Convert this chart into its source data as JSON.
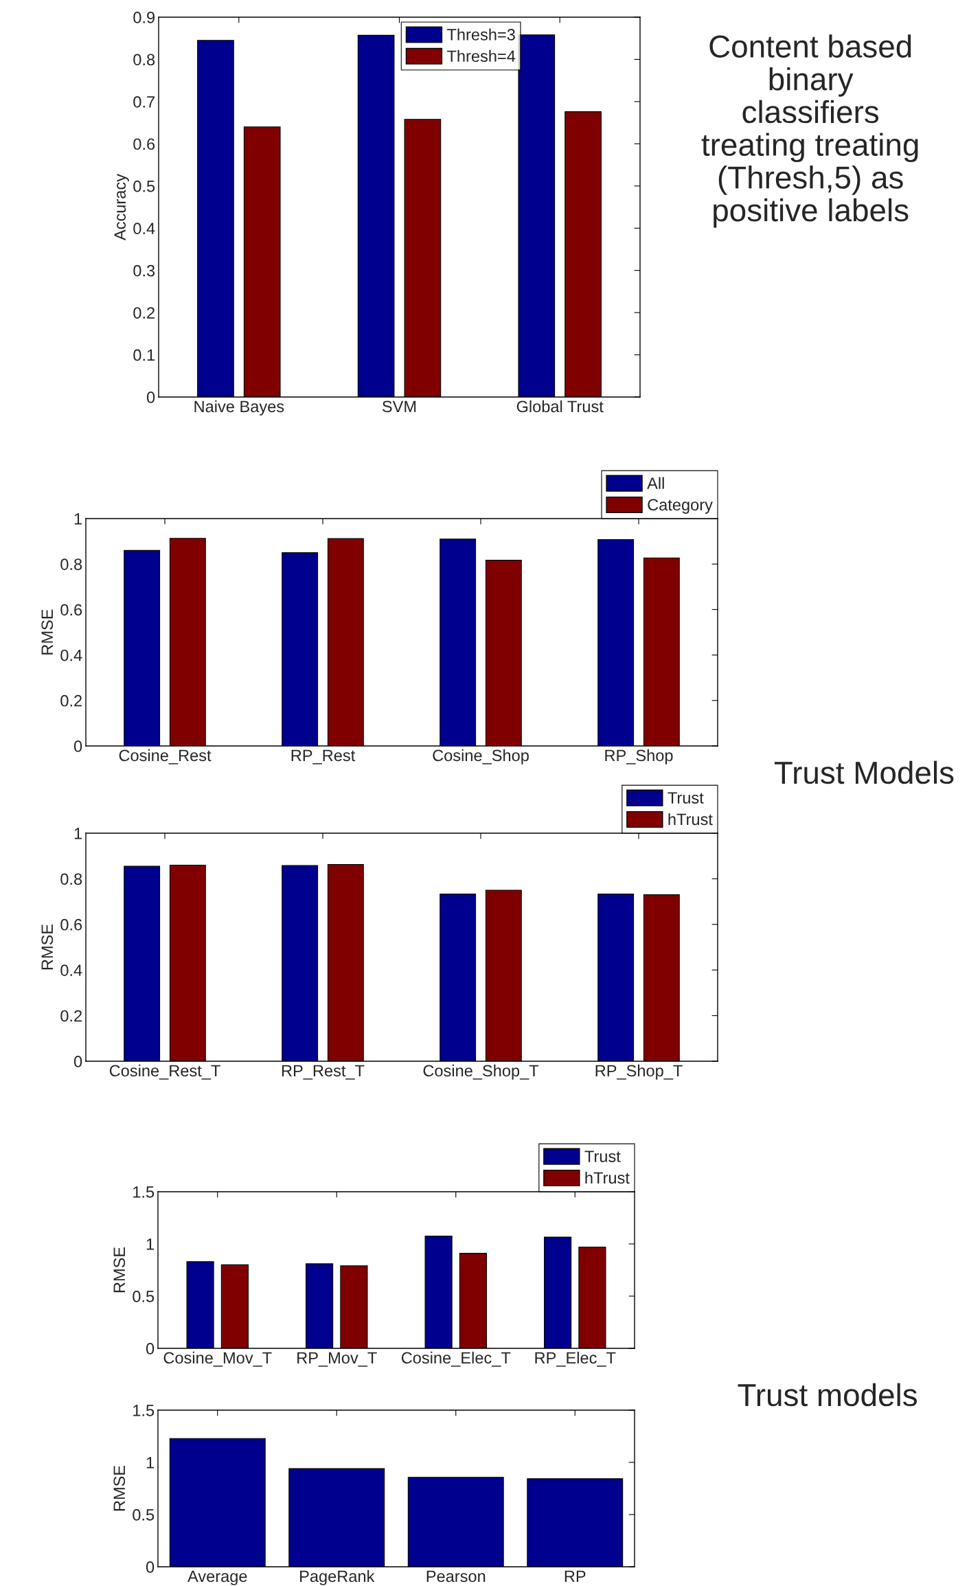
{
  "chart_data": [
    {
      "type": "bar",
      "ylabel": "Accuracy",
      "categories": [
        "Naive Bayes",
        "SVM",
        "Global Trust"
      ],
      "ylim": [
        0,
        0.9
      ],
      "yticks": [
        0,
        0.1,
        0.2,
        0.3,
        0.4,
        0.5,
        0.6,
        0.7,
        0.8,
        0.9
      ],
      "grid": false,
      "legend": "top",
      "series": [
        {
          "name": "Thresh=3",
          "color": "#00008f",
          "values": [
            0.845,
            0.857,
            0.858
          ]
        },
        {
          "name": "Thresh=4",
          "color": "#800000",
          "values": [
            0.64,
            0.658,
            0.676
          ]
        }
      ],
      "annotations": [
        "Content based binary classifiers treating treating (Thresh,5) as positive labels"
      ]
    },
    {
      "type": "bar",
      "ylabel": "RMSE",
      "categories": [
        "Cosine_Rest",
        "RP_Rest",
        "Cosine_Shop",
        "RP_Shop"
      ],
      "ylim": [
        0,
        1
      ],
      "yticks": [
        0,
        0.2,
        0.4,
        0.6,
        0.8,
        1
      ],
      "grid": false,
      "legend": "top right",
      "series": [
        {
          "name": "All",
          "color": "#00008f",
          "values": [
            0.86,
            0.85,
            0.91,
            0.908
          ]
        },
        {
          "name": "Category",
          "color": "#800000",
          "values": [
            0.913,
            0.912,
            0.817,
            0.827
          ]
        }
      ],
      "annotations": [
        "Trust Models"
      ]
    },
    {
      "type": "bar",
      "ylabel": "RMSE",
      "categories": [
        "Cosine_Rest_T",
        "RP_Rest_T",
        "Cosine_Shop_T",
        "RP_Shop_T"
      ],
      "ylim": [
        0,
        1
      ],
      "yticks": [
        0,
        0.2,
        0.4,
        0.6,
        0.8,
        1
      ],
      "grid": false,
      "legend": "top right",
      "series": [
        {
          "name": "Trust",
          "color": "#00008f",
          "values": [
            0.855,
            0.858,
            0.733,
            0.733
          ]
        },
        {
          "name": "hTrust",
          "color": "#800000",
          "values": [
            0.86,
            0.863,
            0.75,
            0.73
          ]
        }
      ]
    },
    {
      "type": "bar",
      "ylabel": "RMSE",
      "categories": [
        "Cosine_Mov_T",
        "RP_Mov_T",
        "Cosine_Elec_T",
        "RP_Elec_T"
      ],
      "ylim": [
        0,
        1.5
      ],
      "yticks": [
        0,
        0.5,
        1,
        1.5
      ],
      "grid": false,
      "legend": "top right",
      "series": [
        {
          "name": "Trust",
          "color": "#00008f",
          "values": [
            0.83,
            0.81,
            1.075,
            1.065
          ]
        },
        {
          "name": "hTrust",
          "color": "#800000",
          "values": [
            0.8,
            0.79,
            0.91,
            0.97
          ]
        }
      ],
      "annotations": [
        "Trust models"
      ]
    },
    {
      "type": "bar",
      "ylabel": "RMSE",
      "categories": [
        "Average",
        "PageRank",
        "Pearson",
        "RP"
      ],
      "ylim": [
        0,
        1.5
      ],
      "yticks": [
        0,
        0.5,
        1,
        1.5
      ],
      "grid": false,
      "series": [
        {
          "color": "#00008f",
          "values": [
            1.229,
            0.94,
            0.857,
            0.843
          ]
        }
      ]
    }
  ]
}
